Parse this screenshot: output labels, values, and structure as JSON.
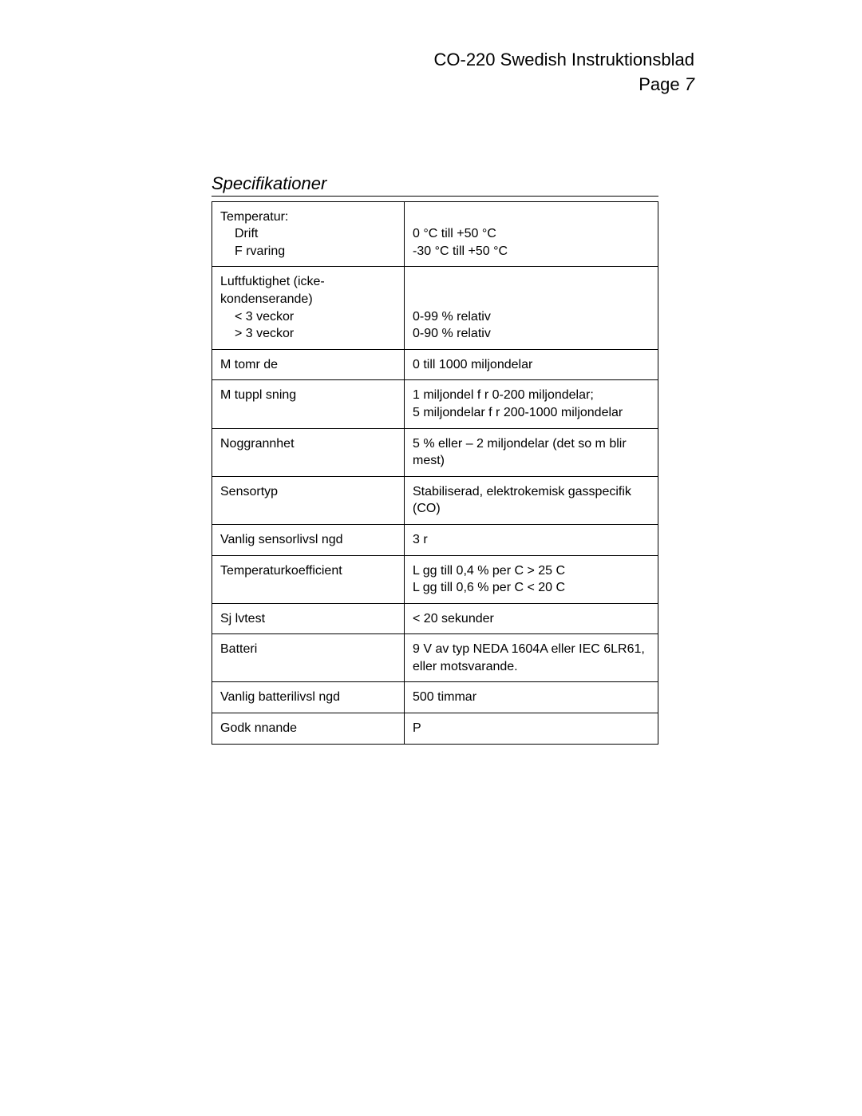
{
  "header": {
    "title": "CO-220 Swedish Instruktionsblad",
    "page_label": "Page",
    "page_number": "7"
  },
  "section": {
    "title": "Specifikationer"
  },
  "table": {
    "rows": [
      {
        "label_main": "Temperatur:",
        "label_sub1": "Drift",
        "label_sub2": "F rvaring",
        "value_line1": "0 °C till +50 °C",
        "value_line2": "-30 °C till +50 °C"
      },
      {
        "label_main": "Luftfuktighet (icke-kondenserande)",
        "label_sub1": "< 3 veckor",
        "label_sub2": "> 3 veckor",
        "value_line1": "0-99 % relativ",
        "value_line2": "0-90 % relativ"
      },
      {
        "label": "M tomr de",
        "value": "0 till 1000 miljondelar"
      },
      {
        "label": "M tuppl sning",
        "value_line1": "1 miljondel f r 0-200 miljondelar;",
        "value_line2": "5 miljondelar f r 200-1000 miljondelar"
      },
      {
        "label": "Noggrannhet",
        "value": "5 % eller – 2 miljondelar (det so  m blir mest)"
      },
      {
        "label": "Sensortyp",
        "value": "Stabiliserad, elektrokemisk gasspecifik (CO)"
      },
      {
        "label": "Vanlig sensorlivsl ngd",
        "value": "3  r"
      },
      {
        "label": "Temperaturkoefficient",
        "value_line1": "L gg till 0,4 % per  C > 25  C",
        "value_line2": "L gg till 0,6 % per  C < 20  C"
      },
      {
        "label": "Sj lvtest",
        "value": "< 20 sekunder"
      },
      {
        "label": "Batteri",
        "value": "9 V av typ NEDA 1604A eller IEC 6LR61, eller motsvarande."
      },
      {
        "label": "Vanlig batterilivsl ngd",
        "value": "500 timmar"
      },
      {
        "label": "Godk nnande",
        "value": "P"
      }
    ]
  }
}
